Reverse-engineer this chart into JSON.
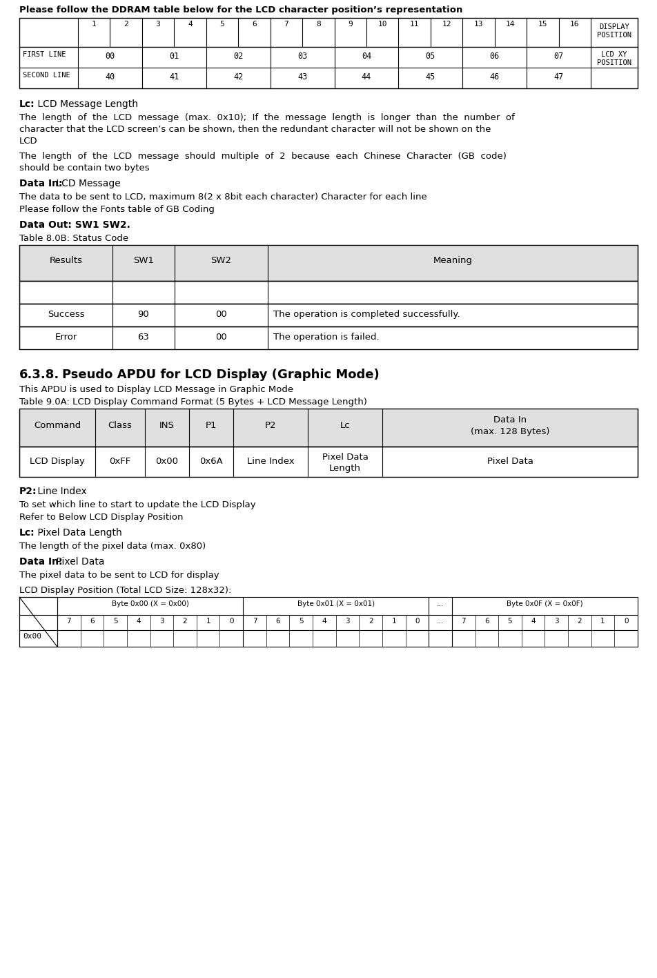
{
  "bg_color": "#ffffff",
  "header_text": "Please follow the DDRAM table below for the LCD character position’s representation",
  "lc_bold": "Lc:",
  "lc_rest": " LCD Message Length",
  "para1_line1": "The  length  of  the  LCD  message  (max.  0x10);  If  the  message  length  is  longer  than  the  number  of",
  "para1_line2": "character that the LCD screen’s can be shown, then the redundant character will not be shown on the",
  "para1_line3": "LCD",
  "para2_line1": "The  length  of  the  LCD  message  should  multiple  of  2  because  each  Chinese  Character  (GB  code)",
  "para2_line2": "should be contain two bytes",
  "datain_bold": "Data In:",
  "datain_rest": " LCD Message",
  "para3": "The data to be sent to LCD, maximum 8(2 x 8bit each character) Character for each line",
  "para4": "Please follow the Fonts table of GB Coding",
  "dataout_bold": "Data Out: SW1 SW2.",
  "table80b_label": "Table 8.0B: Status Code",
  "table80b_headers": [
    "Results",
    "SW1",
    "SW2",
    "Meaning"
  ],
  "table80b_row0": [
    "",
    "",
    "",
    ""
  ],
  "table80b_row1": [
    "Success",
    "90",
    "00",
    "The operation is completed successfully."
  ],
  "table80b_row2": [
    "Error",
    "63",
    "00",
    "The operation is failed."
  ],
  "section_num": "6.3.8.",
  "section_title": "Pseudo APDU for LCD Display (Graphic Mode)",
  "section_desc": "This APDU is used to Display LCD Message in Graphic Mode",
  "table90a_label": "Table 9.0A: LCD Display Command Format (5 Bytes + LCD Message Length)",
  "table90a_h0": "Command",
  "table90a_h1": "Class",
  "table90a_h2": "INS",
  "table90a_h3": "P1",
  "table90a_h4": "P2",
  "table90a_h5": "Lc",
  "table90a_h6a": "Data In",
  "table90a_h6b": "(max. 128 Bytes)",
  "table90a_r0": "LCD Display",
  "table90a_r1": "0xFF",
  "table90a_r2": "0x00",
  "table90a_r3": "0x6A",
  "table90a_r4": "Line Index",
  "table90a_r5a": "Pixel Data",
  "table90a_r5b": "Length",
  "table90a_r6": "Pixel Data",
  "p2_bold": "P2:",
  "p2_rest": " Line Index",
  "p2_desc1": "To set which line to start to update the LCD Display",
  "p2_desc2": "Refer to Below LCD Display Position",
  "lc2_bold": "Lc:",
  "lc2_rest": " Pixel Data Length",
  "lc2_desc": "The length of the pixel data (max. 0x80)",
  "datain2_bold": "Data In:",
  "datain2_rest": " Pixel Data",
  "datain2_desc": "The pixel data to be sent to LCD for display",
  "lcd_pos_label": "LCD Display Position (Total LCD Size: 128x32):",
  "pixel_table_row0": "0x00"
}
